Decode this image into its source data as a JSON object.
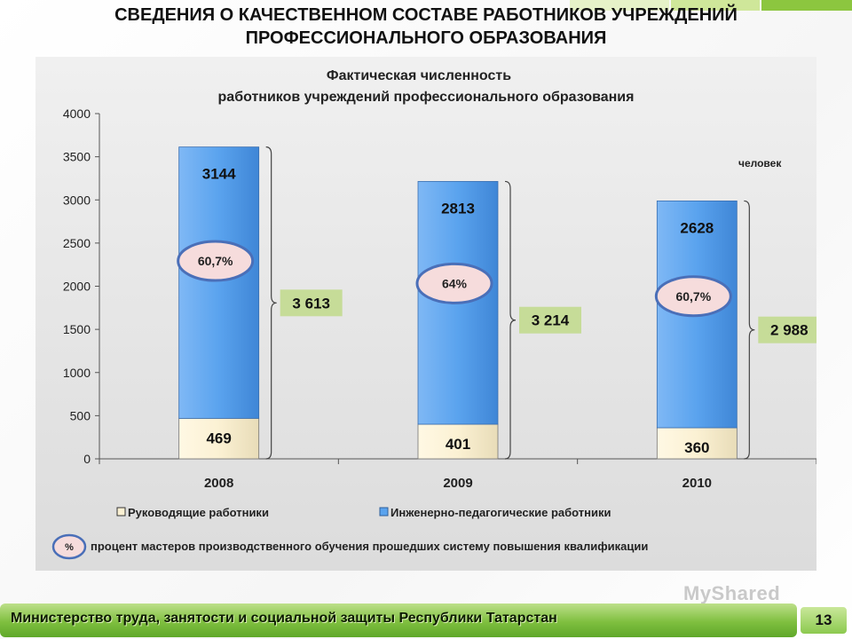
{
  "slide": {
    "title_line1": "СВЕДЕНИЯ О КАЧЕСТВЕННОМ  СОСТАВЕ РАБОТНИКОВ УЧРЕЖДЕНИЙ",
    "title_line2": "ПРОФЕССИОНАЛЬНОГО ОБРАЗОВАНИЯ",
    "footer_text": "Министерство труда, занятости и социальной защиты Республики Татарстан",
    "page_number": "13",
    "watermark": "MyShared"
  },
  "colors": {
    "managers": "#fbf1d3",
    "engineers": "#5aa3ee",
    "total_label_bg": "#c6dc98",
    "percent_ellipse_fill": "#f6dcdc",
    "percent_ellipse_stroke": "#4a6fb8",
    "stripe_green": "#8cc63f"
  },
  "chart_data": {
    "type": "bar",
    "stacked": true,
    "title_line1": "Фактическая численность",
    "title_line2": "работников учреждений профессионального образования",
    "unit_label": "человек",
    "categories": [
      "2008",
      "2009",
      "2010"
    ],
    "ylim": [
      0,
      4000
    ],
    "yticks": [
      0,
      500,
      1000,
      1500,
      2000,
      2500,
      3000,
      3500,
      4000
    ],
    "series": [
      {
        "name": "Руководящие работники",
        "values": [
          469,
          401,
          360
        ]
      },
      {
        "name": "Инженерно-педагогические работники",
        "values": [
          3144,
          2813,
          2628
        ]
      }
    ],
    "segment_labels": {
      "managers": [
        "469",
        "401",
        "360"
      ],
      "engineers": [
        "3144",
        "2813",
        "2628"
      ]
    },
    "totals": [
      "3 613",
      "3 214",
      "2 988"
    ],
    "percent_labels": [
      "60,7%",
      "64%",
      "60,7%"
    ],
    "percent_legend_symbol": "%",
    "percent_legend_text": "процент мастеров производственного обучения прошедших систему повышения квалификации",
    "legend_position": "bottom",
    "grid": false
  }
}
